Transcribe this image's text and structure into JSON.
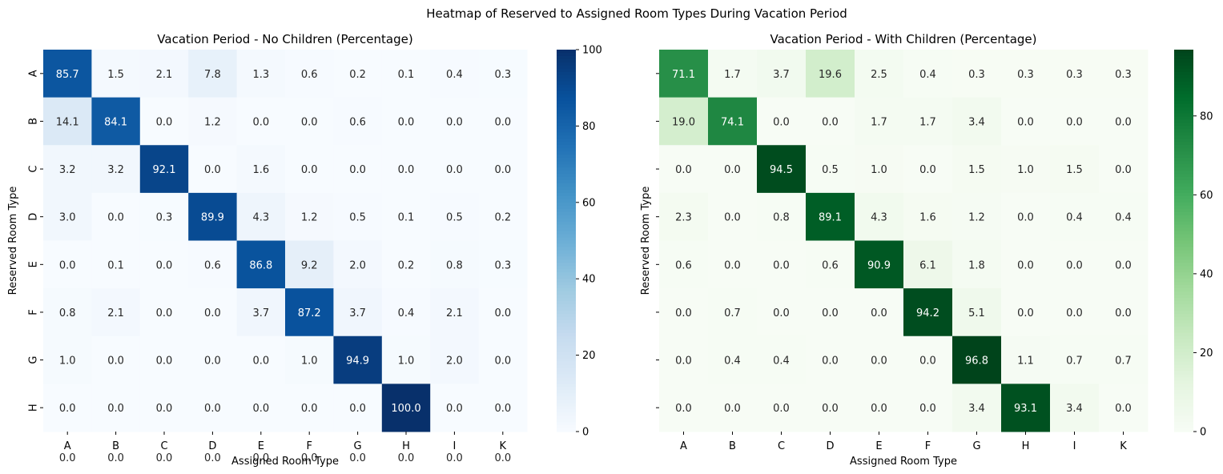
{
  "suptitle": "Heatmap of Reserved to Assigned Room Types During Vacation Period",
  "chart_data": [
    {
      "type": "heatmap",
      "title": "Vacation Period - No Children (Percentage)",
      "xlabel": "Assigned Room Type",
      "ylabel": "Reserved Room Type",
      "x_categories": [
        "A",
        "B",
        "C",
        "D",
        "E",
        "F",
        "G",
        "H",
        "I",
        "K"
      ],
      "y_categories": [
        "A",
        "B",
        "C",
        "D",
        "E",
        "F",
        "G",
        "H"
      ],
      "values": [
        [
          85.7,
          1.5,
          2.1,
          7.8,
          1.3,
          0.6,
          0.2,
          0.1,
          0.4,
          0.3
        ],
        [
          14.1,
          84.1,
          0.0,
          1.2,
          0.0,
          0.0,
          0.6,
          0.0,
          0.0,
          0.0
        ],
        [
          3.2,
          3.2,
          92.1,
          0.0,
          1.6,
          0.0,
          0.0,
          0.0,
          0.0,
          0.0
        ],
        [
          3.0,
          0.0,
          0.3,
          89.9,
          4.3,
          1.2,
          0.5,
          0.1,
          0.5,
          0.2
        ],
        [
          0.0,
          0.1,
          0.0,
          0.6,
          86.8,
          9.2,
          2.0,
          0.2,
          0.8,
          0.3
        ],
        [
          0.8,
          2.1,
          0.0,
          0.0,
          3.7,
          87.2,
          3.7,
          0.4,
          2.1,
          0.0
        ],
        [
          1.0,
          0.0,
          0.0,
          0.0,
          0.0,
          1.0,
          94.9,
          1.0,
          2.0,
          0.0
        ],
        [
          0.0,
          0.0,
          0.0,
          0.0,
          0.0,
          0.0,
          0.0,
          100.0,
          0.0,
          0.0
        ]
      ],
      "extra_row_values": [
        0.0,
        0.0,
        0.0,
        0.0,
        0.0,
        0.0,
        0.0,
        0.0,
        0.0,
        0.0
      ],
      "colormap": "Blues",
      "colorbar_range": [
        0,
        100
      ],
      "colorbar_ticks": [
        0,
        20,
        40,
        60,
        80,
        100
      ],
      "value_format": "0.0"
    },
    {
      "type": "heatmap",
      "title": "Vacation Period - With Children (Percentage)",
      "xlabel": "Assigned Room Type",
      "ylabel": "Reserved Room Type",
      "x_categories": [
        "A",
        "B",
        "C",
        "D",
        "E",
        "F",
        "G",
        "H",
        "I",
        "K"
      ],
      "y_categories": [
        "A",
        "B",
        "C",
        "D",
        "E",
        "F",
        "G",
        "H"
      ],
      "show_y_tick_labels": false,
      "values": [
        [
          71.1,
          1.7,
          3.7,
          19.6,
          2.5,
          0.4,
          0.3,
          0.3,
          0.3,
          0.3
        ],
        [
          19.0,
          74.1,
          0.0,
          0.0,
          1.7,
          1.7,
          3.4,
          0.0,
          0.0,
          0.0
        ],
        [
          0.0,
          0.0,
          94.5,
          0.5,
          1.0,
          0.0,
          1.5,
          1.0,
          1.5,
          0.0
        ],
        [
          2.3,
          0.0,
          0.8,
          89.1,
          4.3,
          1.6,
          1.2,
          0.0,
          0.4,
          0.4
        ],
        [
          0.6,
          0.0,
          0.0,
          0.6,
          90.9,
          6.1,
          1.8,
          0.0,
          0.0,
          0.0
        ],
        [
          0.0,
          0.7,
          0.0,
          0.0,
          0.0,
          94.2,
          5.1,
          0.0,
          0.0,
          0.0
        ],
        [
          0.0,
          0.4,
          0.4,
          0.0,
          0.0,
          0.0,
          96.8,
          1.1,
          0.7,
          0.7
        ],
        [
          0.0,
          0.0,
          0.0,
          0.0,
          0.0,
          0.0,
          3.4,
          93.1,
          3.4,
          0.0
        ]
      ],
      "colormap": "Greens",
      "colorbar_range": [
        0,
        96.8
      ],
      "colorbar_ticks": [
        0,
        20,
        40,
        60,
        80
      ],
      "value_format": "0.0"
    }
  ]
}
